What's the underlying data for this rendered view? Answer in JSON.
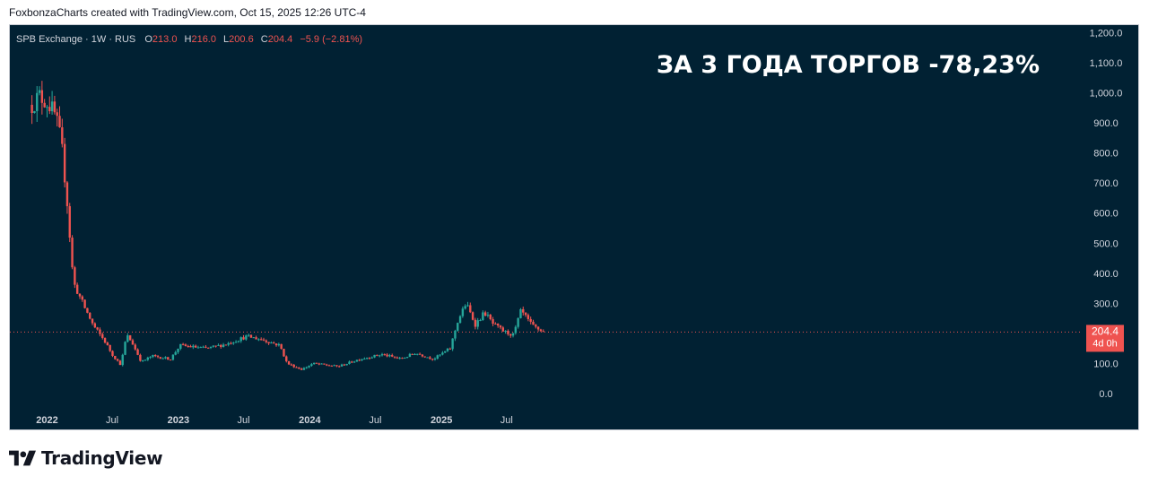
{
  "caption": "FoxbonzaCharts created with TradingView.com, Oct 15, 2025 12:26 UTC-4",
  "logo": {
    "text": "TradingView",
    "icon": "tradingview-logo-icon"
  },
  "legend": {
    "symbol": "SPB Exchange · 1W · RUS",
    "o_label": "O",
    "o_value": "213.0",
    "h_label": "H",
    "h_value": "216.0",
    "l_label": "L",
    "l_value": "200.6",
    "c_label": "C",
    "c_value": "204.4",
    "change": "−5.9 (−2.81%)"
  },
  "annotation": "ЗА 3 ГОДА ТОРГОВ -78,23%",
  "price_badge": {
    "price": "204.4",
    "countdown": "4d 0h"
  },
  "colors": {
    "background": "#012133",
    "up": "#26a69a",
    "down": "#ef5350",
    "text": "#d1d4dc",
    "price_line": "#ef5350"
  },
  "chart_data": {
    "type": "candlestick",
    "interval": "1W",
    "yaxis_ticks": [
      "1,200.0",
      "1,100.0",
      "1,000.0",
      "900.0",
      "800.0",
      "700.0",
      "600.0",
      "500.0",
      "400.0",
      "300.0",
      "200.0",
      "100.0",
      "0.0"
    ],
    "ylim": [
      0,
      1200
    ],
    "xaxis_ticks": [
      {
        "label": "2022",
        "date": "2022-01-01",
        "bold": true
      },
      {
        "label": "Jul",
        "date": "2022-07-01",
        "bold": false
      },
      {
        "label": "2023",
        "date": "2023-01-01",
        "bold": true
      },
      {
        "label": "Jul",
        "date": "2023-07-01",
        "bold": false
      },
      {
        "label": "2024",
        "date": "2024-01-01",
        "bold": true
      },
      {
        "label": "Jul",
        "date": "2024-07-01",
        "bold": false
      },
      {
        "label": "2025",
        "date": "2025-01-01",
        "bold": true
      },
      {
        "label": "Jul",
        "date": "2025-07-01",
        "bold": false
      }
    ],
    "last_price": 204.4,
    "anchors": [
      [
        "2021-11-20",
        960
      ],
      [
        "2021-12-10",
        990
      ],
      [
        "2022-01-05",
        965
      ],
      [
        "2022-01-25",
        920
      ],
      [
        "2022-02-10",
        830
      ],
      [
        "2022-02-25",
        650
      ],
      [
        "2022-03-15",
        370
      ],
      [
        "2022-04-10",
        300
      ],
      [
        "2022-05-10",
        225
      ],
      [
        "2022-06-10",
        175
      ],
      [
        "2022-07-01",
        130
      ],
      [
        "2022-07-25",
        95
      ],
      [
        "2022-08-10",
        195
      ],
      [
        "2022-08-25",
        170
      ],
      [
        "2022-09-20",
        105
      ],
      [
        "2022-10-20",
        125
      ],
      [
        "2022-12-10",
        115
      ],
      [
        "2023-01-05",
        160
      ],
      [
        "2023-03-20",
        150
      ],
      [
        "2023-05-15",
        165
      ],
      [
        "2023-07-10",
        190
      ],
      [
        "2023-08-20",
        180
      ],
      [
        "2023-10-10",
        160
      ],
      [
        "2023-10-30",
        100
      ],
      [
        "2023-12-10",
        80
      ],
      [
        "2024-01-10",
        100
      ],
      [
        "2024-03-20",
        90
      ],
      [
        "2024-05-20",
        115
      ],
      [
        "2024-07-20",
        130
      ],
      [
        "2024-09-10",
        115
      ],
      [
        "2024-10-20",
        135
      ],
      [
        "2024-12-10",
        115
      ],
      [
        "2025-01-25",
        150
      ],
      [
        "2025-02-15",
        240
      ],
      [
        "2025-03-10",
        300
      ],
      [
        "2025-04-05",
        230
      ],
      [
        "2025-05-01",
        270
      ],
      [
        "2025-05-25",
        230
      ],
      [
        "2025-06-25",
        205
      ],
      [
        "2025-07-20",
        195
      ],
      [
        "2025-08-10",
        275
      ],
      [
        "2025-09-10",
        225
      ],
      [
        "2025-10-13",
        204.4
      ]
    ]
  }
}
